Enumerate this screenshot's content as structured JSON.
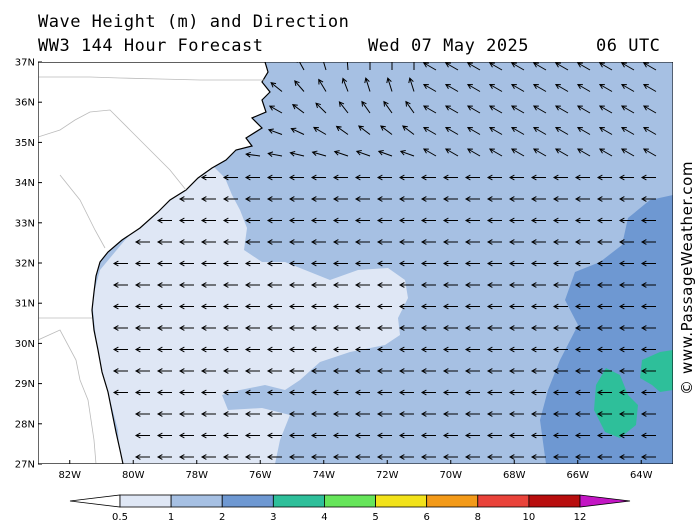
{
  "header": {
    "title_line1": "Wave Height (m) and Direction",
    "title_line2": "WW3 144 Hour Forecast",
    "date": "Wed 07 May 2025",
    "time": "06 UTC"
  },
  "credit": "© www.PassageWeather.com",
  "map": {
    "lat_labels": [
      "37N",
      "36N",
      "35N",
      "34N",
      "33N",
      "32N",
      "31N",
      "30N",
      "29N",
      "28N",
      "27N"
    ],
    "lon_labels": [
      "82W",
      "80W",
      "78W",
      "76W",
      "74W",
      "72W",
      "70W",
      "68W",
      "66W",
      "64W"
    ],
    "lat_range": [
      27,
      37
    ],
    "lon_range": [
      -83,
      -63
    ],
    "arrow_direction": "westward swell over open ocean, turning northwest to north near Cape Hatteras"
  },
  "legend": {
    "values": [
      "0.5",
      "1",
      "2",
      "3",
      "4",
      "5",
      "6",
      "8",
      "10",
      "12"
    ],
    "unit": "m",
    "colors": [
      "#dfe7f5",
      "#a6c0e3",
      "#6e98d2",
      "#2ebf9a",
      "#66e55a",
      "#f2e21a",
      "#f39a19",
      "#e9433a",
      "#b80e0e",
      "#c316c4"
    ]
  }
}
